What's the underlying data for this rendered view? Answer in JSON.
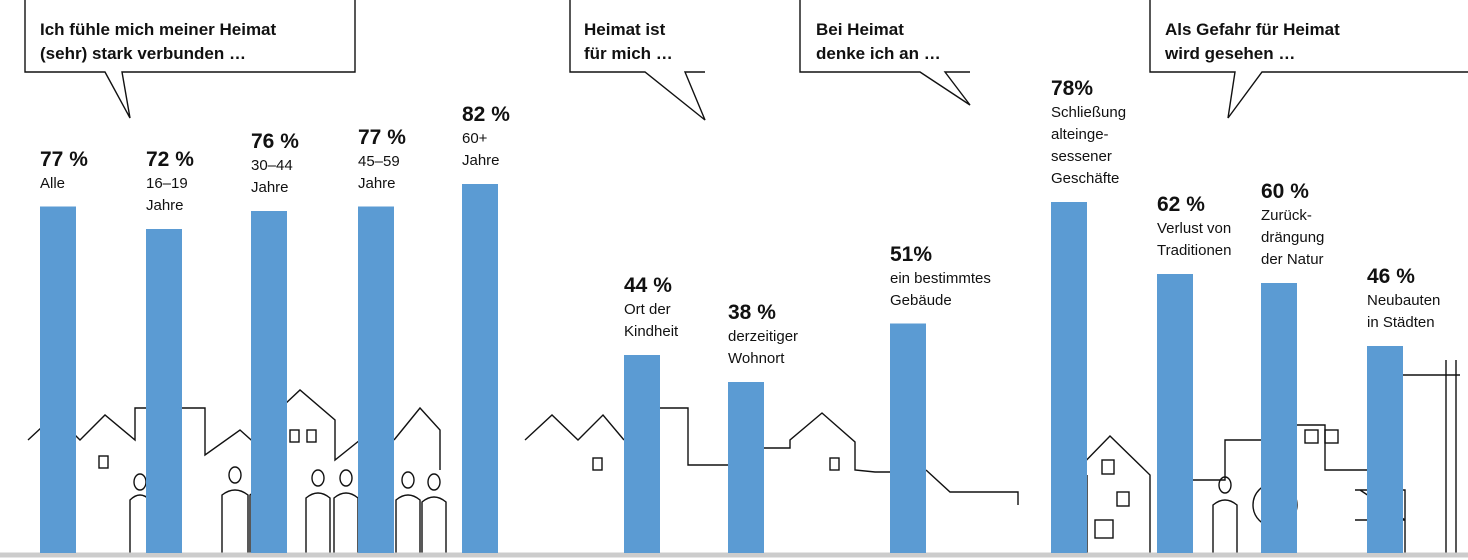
{
  "chart_data": [
    {
      "type": "bar",
      "title": "Ich fühle mich meiner Heimat\n(sehr) stark verbunden …",
      "color": "#5b9bd3",
      "categories": [
        "Alle",
        "16–19\nJahre",
        "30–44\nJahre",
        "45–59\nJahre",
        "60+\nJahre"
      ],
      "values": [
        77,
        72,
        76,
        77,
        82
      ],
      "value_labels": [
        "77 %",
        "72 %",
        "76 %",
        "77 %",
        "82 %"
      ]
    },
    {
      "type": "bar",
      "title": "Heimat ist\nfür mich …",
      "color": "#5b9bd3",
      "categories": [
        "Ort der\nKindheit",
        "derzeitiger\nWohnort"
      ],
      "values": [
        44,
        38
      ],
      "value_labels": [
        "44 %",
        "38 %"
      ]
    },
    {
      "type": "bar",
      "title": "Bei Heimat\ndenke ich an …",
      "color": "#5b9bd3",
      "categories": [
        "ein bestimmtes\nGebäude"
      ],
      "values": [
        51
      ],
      "value_labels": [
        "51%"
      ]
    },
    {
      "type": "bar",
      "title": "Als Gefahr für Heimat\nwird gesehen …",
      "color": "#5b9bd3",
      "categories": [
        "Schließung\nalteinge-\nsessener\nGeschäfte",
        "Verlust von\nTraditionen",
        "Zurück-\ndrängung\nder Natur",
        "Neubauten\nin Städten"
      ],
      "values": [
        78,
        62,
        60,
        46
      ],
      "value_labels": [
        "78%",
        "62 %",
        "60 %",
        "46 %"
      ]
    }
  ]
}
